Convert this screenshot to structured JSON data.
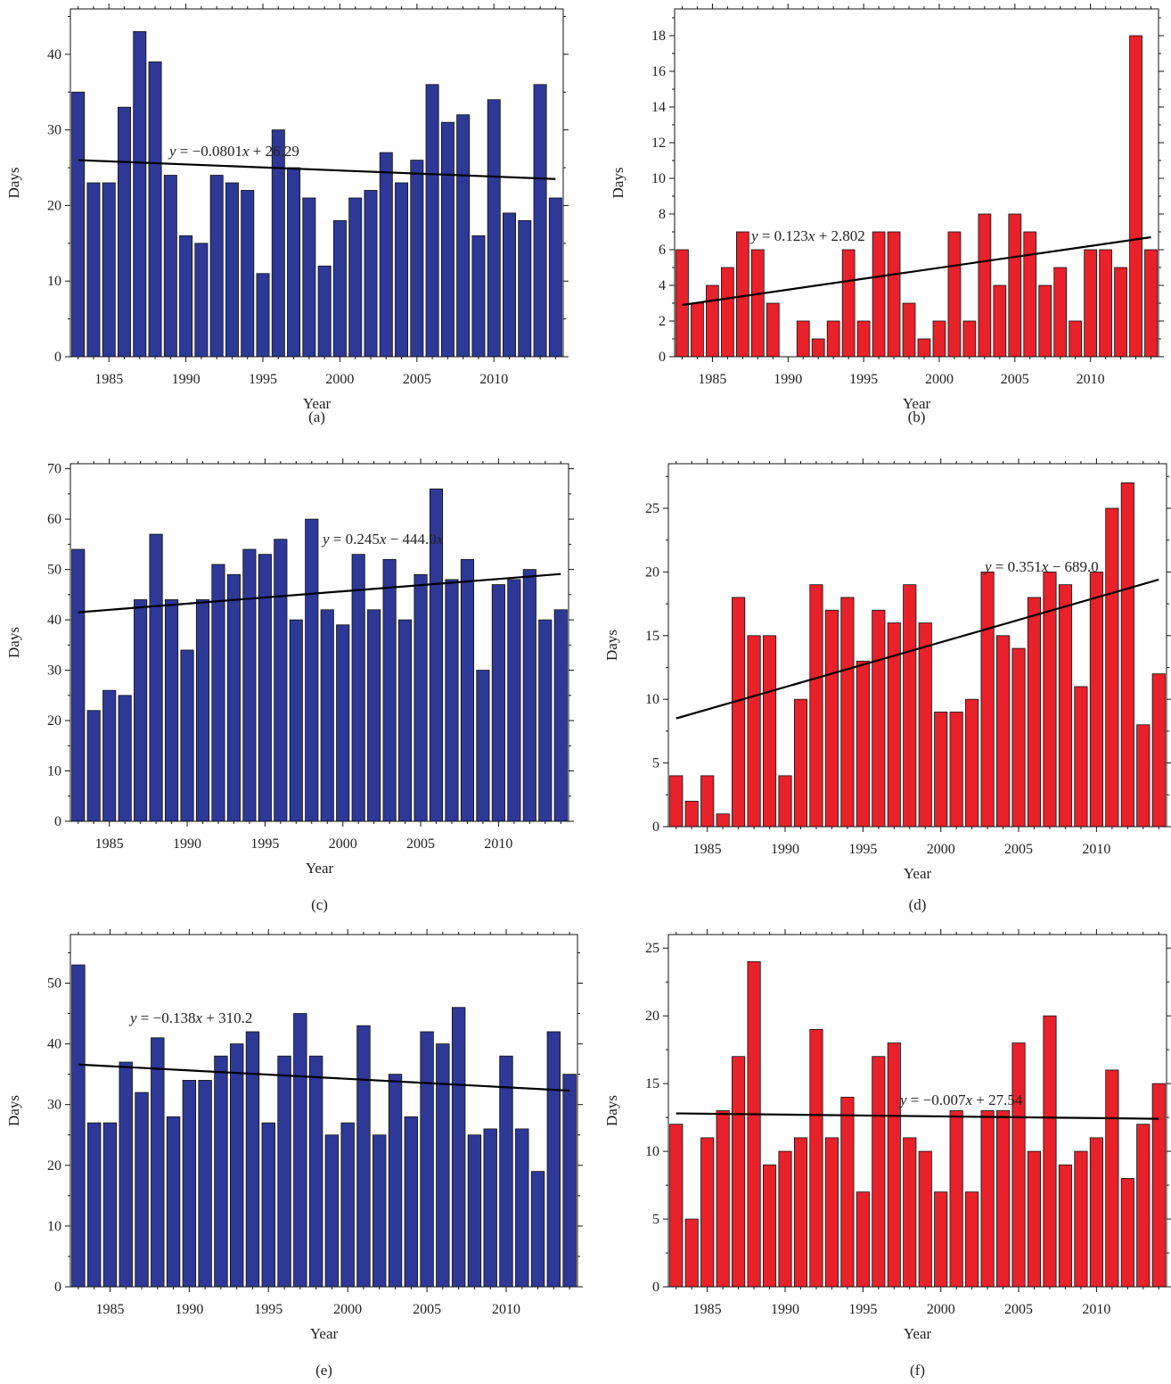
{
  "colors": {
    "blue_bar": "#2e3896",
    "red_bar": "#e8212a",
    "trend_line": "#000000",
    "bar_edge": "#111111"
  },
  "chart_data": [
    {
      "panel": "(a)",
      "type": "bar",
      "xlabel": "Year",
      "ylabel": "Days",
      "color": "#2e3896",
      "x_start": 1983,
      "x_ticks": [
        1985,
        1990,
        1995,
        2000,
        2005,
        2010
      ],
      "values": [
        35,
        23,
        23,
        33,
        43,
        39,
        24,
        16,
        15,
        24,
        23,
        22,
        11,
        30,
        25,
        21,
        12,
        18,
        21,
        22,
        27,
        23,
        26,
        36,
        31,
        32,
        16,
        34,
        19,
        18,
        36,
        21
      ],
      "ylim": [
        0,
        46
      ],
      "y_ticks": [
        0,
        10,
        20,
        30,
        40
      ],
      "trend": {
        "y_start": 26.0,
        "y_end": 23.5
      },
      "equation": {
        "y": "y",
        "mid": " = −0.0801",
        "x": "x",
        "rest": " + 26.29"
      }
    },
    {
      "panel": "(b)",
      "type": "bar",
      "xlabel": "Year",
      "ylabel": "Days",
      "color": "#e8212a",
      "x_start": 1983,
      "x_ticks": [
        1985,
        1990,
        1995,
        2000,
        2005,
        2010
      ],
      "values": [
        6,
        3,
        4,
        5,
        7,
        6,
        3,
        0,
        2,
        1,
        2,
        6,
        2,
        7,
        7,
        3,
        1,
        2,
        7,
        2,
        8,
        4,
        8,
        7,
        4,
        5,
        2,
        6,
        6,
        5,
        18,
        6
      ],
      "ylim": [
        0,
        19.5
      ],
      "y_ticks": [
        0,
        2,
        4,
        6,
        8,
        10,
        12,
        14,
        16,
        18
      ],
      "trend": {
        "y_start": 2.9,
        "y_end": 6.7
      },
      "equation": {
        "y": "y",
        "mid": " = 0.123",
        "x": "x",
        "rest": " + 2.802"
      }
    },
    {
      "panel": "(c)",
      "type": "bar",
      "xlabel": "Year",
      "ylabel": "Days",
      "color": "#2e3896",
      "x_start": 1983,
      "x_ticks": [
        1985,
        1990,
        1995,
        2000,
        2005,
        2010
      ],
      "values": [
        54,
        22,
        26,
        25,
        44,
        57,
        44,
        34,
        44,
        51,
        49,
        54,
        53,
        56,
        40,
        60,
        42,
        39,
        53,
        42,
        52,
        40,
        49,
        66,
        48,
        52,
        30,
        47,
        48,
        50,
        40,
        42
      ],
      "ylim": [
        0,
        71
      ],
      "y_ticks": [
        0,
        10,
        20,
        30,
        40,
        50,
        60,
        70
      ],
      "trend": {
        "y_start": 41.5,
        "y_end": 49.1
      },
      "equation": {
        "y": "y",
        "mid": " = 0.245",
        "x": "x",
        "rest": " − 444.0",
        "tail": "x"
      }
    },
    {
      "panel": "(d)",
      "type": "bar",
      "xlabel": "Year",
      "ylabel": "Days",
      "color": "#e8212a",
      "x_start": 1983,
      "x_ticks": [
        1985,
        1990,
        1995,
        2000,
        2005,
        2010
      ],
      "values": [
        4,
        2,
        4,
        1,
        18,
        15,
        15,
        4,
        10,
        19,
        17,
        18,
        13,
        17,
        16,
        19,
        16,
        9,
        9,
        10,
        20,
        15,
        14,
        18,
        20,
        19,
        11,
        20,
        25,
        27,
        8,
        12
      ],
      "ylim": [
        0,
        28.5
      ],
      "y_ticks": [
        0,
        5,
        10,
        15,
        20,
        25
      ],
      "trend": {
        "y_start": 8.5,
        "y_end": 19.4
      },
      "equation": {
        "y": "y",
        "mid": " = 0.351",
        "x": "x",
        "rest": " − 689.0"
      }
    },
    {
      "panel": "(e)",
      "type": "bar",
      "xlabel": "Year",
      "ylabel": "Days",
      "color": "#2e3896",
      "x_start": 1983,
      "x_ticks": [
        1985,
        1990,
        1995,
        2000,
        2005,
        2010
      ],
      "values": [
        53,
        27,
        27,
        37,
        32,
        41,
        28,
        34,
        34,
        38,
        40,
        42,
        27,
        38,
        45,
        38,
        25,
        27,
        43,
        25,
        35,
        28,
        42,
        40,
        46,
        25,
        26,
        38,
        26,
        19,
        42,
        35
      ],
      "ylim": [
        0,
        58
      ],
      "y_ticks": [
        0,
        10,
        20,
        30,
        40,
        50
      ],
      "trend": {
        "y_start": 36.6,
        "y_end": 32.3
      },
      "equation": {
        "y": "y",
        "mid": " = −0.138",
        "x": "x",
        "rest": " + 310.2"
      }
    },
    {
      "panel": "(f)",
      "type": "bar",
      "xlabel": "Year",
      "ylabel": "Days",
      "color": "#e8212a",
      "x_start": 1983,
      "x_ticks": [
        1985,
        1990,
        1995,
        2000,
        2005,
        2010
      ],
      "values": [
        12,
        5,
        11,
        13,
        17,
        24,
        9,
        10,
        11,
        19,
        11,
        14,
        7,
        17,
        18,
        11,
        10,
        7,
        13,
        7,
        13,
        13,
        18,
        10,
        20,
        9,
        10,
        11,
        16,
        8,
        12,
        15
      ],
      "ylim": [
        0,
        26
      ],
      "y_ticks": [
        0,
        5,
        10,
        15,
        20,
        25
      ],
      "trend": {
        "y_start": 12.8,
        "y_end": 12.4
      },
      "equation": {
        "y": "y",
        "mid": " = −0.007",
        "x": "x",
        "rest": " + 27.54"
      }
    }
  ]
}
